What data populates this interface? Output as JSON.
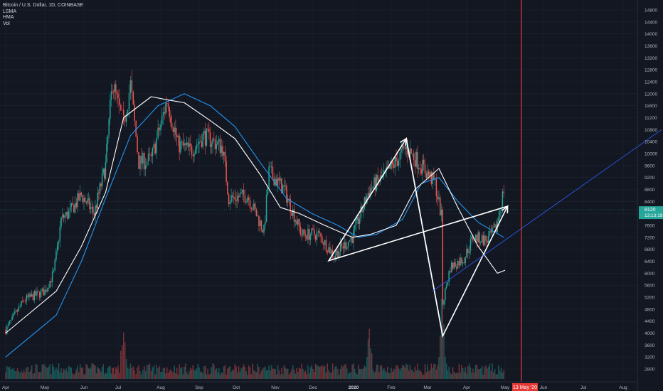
{
  "legend": {
    "symbol_line": "Bitcoin / U.S. Dollar, 1D, COINBASE",
    "indicators": [
      "LSMA",
      "HMA",
      "Vol"
    ]
  },
  "price_tag": {
    "price": "8120",
    "countdown": "13:13:19",
    "color": "#26a69a"
  },
  "time_marker": {
    "label": "13 May '20",
    "color": "#e53935"
  },
  "colors": {
    "background": "#131722",
    "grid": "#1f2433",
    "up": "#26a69a",
    "down": "#ef5350",
    "lsma": "#ffffff",
    "hma": "#2196f3",
    "drawing": "#ffffff",
    "trendline": "#2962ff"
  },
  "chart_data": {
    "type": "candlestick",
    "title": "Bitcoin / U.S. Dollar, 1D, COINBASE",
    "yticks": [
      2800,
      3200,
      3600,
      4000,
      4400,
      4800,
      5200,
      5600,
      6000,
      6400,
      6800,
      7200,
      7600,
      8000,
      8400,
      8800,
      9200,
      9600,
      10000,
      10400,
      10800,
      11200,
      11600,
      12000,
      12400,
      12800,
      13200,
      13600,
      14000,
      14400,
      14800
    ],
    "ylim": [
      2480,
      15000
    ],
    "xticks": [
      "Apr",
      "May",
      "Jun",
      "Jul",
      "Aug",
      "Sep",
      "Oct",
      "Nov",
      "Dec",
      "2020",
      "Feb",
      "Mar",
      "Apr",
      "May",
      "Jun",
      "Jul",
      "Aug"
    ],
    "xlim": [
      "2019-04-01",
      "2020-09-01"
    ],
    "last_price": 8120,
    "close_series": {
      "dates": [
        "2019-04-01",
        "2019-04-15",
        "2019-05-01",
        "2019-05-08",
        "2019-05-14",
        "2019-05-20",
        "2019-05-30",
        "2019-06-10",
        "2019-06-20",
        "2019-06-26",
        "2019-07-05",
        "2019-07-10",
        "2019-07-16",
        "2019-07-25",
        "2019-08-06",
        "2019-08-15",
        "2019-08-25",
        "2019-09-05",
        "2019-09-20",
        "2019-09-25",
        "2019-10-10",
        "2019-10-23",
        "2019-10-27",
        "2019-11-08",
        "2019-11-22",
        "2019-12-05",
        "2019-12-17",
        "2019-12-31",
        "2020-01-14",
        "2020-01-30",
        "2020-02-13",
        "2020-02-25",
        "2020-03-07",
        "2020-03-12",
        "2020-03-13",
        "2020-03-19",
        "2020-03-30",
        "2020-04-06",
        "2020-04-17",
        "2020-04-24",
        "2020-04-30"
      ],
      "values": [
        4100,
        5100,
        5400,
        6000,
        7800,
        8000,
        8600,
        8000,
        9600,
        12400,
        11000,
        12300,
        9700,
        9800,
        11800,
        10300,
        10100,
        10600,
        10200,
        8500,
        8600,
        7400,
        9400,
        8800,
        7300,
        7300,
        6600,
        7200,
        8800,
        9400,
        10200,
        9600,
        9000,
        7900,
        5000,
        6200,
        6500,
        7200,
        7100,
        7500,
        8800
      ]
    },
    "volume": {
      "peak_dates": [
        "2019-07-05",
        "2020-01-14",
        "2020-03-12",
        "2020-03-13"
      ],
      "note": ""
    },
    "lsma": {
      "dates": [
        "2019-04-01",
        "2019-05-10",
        "2019-05-30",
        "2019-06-20",
        "2019-07-05",
        "2019-07-25",
        "2019-08-06",
        "2019-08-20",
        "2019-09-10",
        "2019-09-30",
        "2019-10-20",
        "2019-11-05",
        "2019-11-20",
        "2019-12-10",
        "2019-12-31",
        "2020-01-15",
        "2020-02-05",
        "2020-02-20",
        "2020-03-10",
        "2020-03-25",
        "2020-04-10",
        "2020-04-25",
        "2020-05-01"
      ],
      "values": [
        4000,
        5400,
        6900,
        8700,
        11200,
        11900,
        11800,
        11700,
        11100,
        10500,
        9300,
        8200,
        8000,
        7600,
        7200,
        7300,
        7600,
        8800,
        9500,
        8200,
        6900,
        6000,
        6100
      ]
    },
    "hma": {
      "dates": [
        "2019-04-01",
        "2019-05-10",
        "2019-05-30",
        "2019-06-20",
        "2019-07-10",
        "2019-07-30",
        "2019-08-20",
        "2019-09-10",
        "2019-09-30",
        "2019-10-20",
        "2019-11-10",
        "2019-11-30",
        "2019-12-20",
        "2020-01-05",
        "2020-01-20",
        "2020-02-10",
        "2020-02-25",
        "2020-03-10",
        "2020-03-25",
        "2020-04-10",
        "2020-04-30"
      ],
      "values": [
        3200,
        4600,
        6400,
        8500,
        10600,
        11600,
        12000,
        11600,
        10900,
        9700,
        8500,
        8000,
        7600,
        7200,
        7300,
        7800,
        9000,
        9200,
        8400,
        7700,
        7200
      ]
    },
    "drawings": {
      "diamond": {
        "dates": [
          "2019-12-13",
          "2020-02-13",
          "2020-03-13",
          "2020-05-03"
        ],
        "values": [
          6420,
          10500,
          3900,
          8240
        ]
      },
      "inner_lines": [
        {
          "dates": [
            "2020-02-13",
            "2020-03-13"
          ],
          "values": [
            10500,
            3900
          ]
        }
      ],
      "trend_ray": {
        "dates": [
          "2020-03-05",
          "2020-08-31"
        ],
        "values": [
          5400,
          10800
        ]
      }
    }
  }
}
